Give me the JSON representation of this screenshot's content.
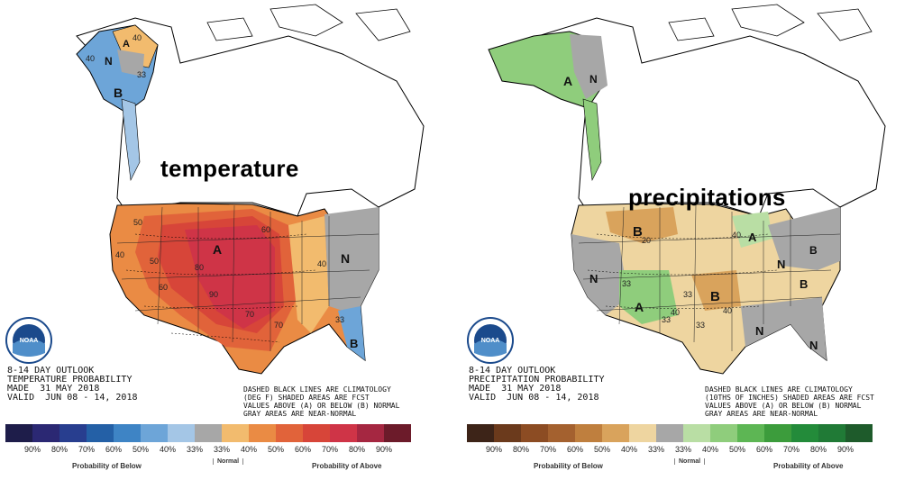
{
  "panels": {
    "temperature": {
      "big_label": "temperature",
      "info_lines": [
        "8-14 DAY OUTLOOK",
        "TEMPERATURE PROBABILITY",
        "MADE  31 MAY 2018",
        "VALID  JUN 08 - 14, 2018"
      ],
      "legend_lines": [
        "DASHED BLACK LINES ARE CLIMATOLOGY",
        "(DEG F) SHADED AREAS ARE FCST",
        "VALUES ABOVE (A) OR BELOW (B) NORMAL",
        "GRAY AREAS ARE NEAR-NORMAL"
      ],
      "map_labels": {
        "a_west": "A",
        "a_alaska": "A",
        "b_alaska": "B",
        "n_alaska": "N",
        "n_east": "N",
        "b_florida": "B"
      },
      "contour_values": [
        "40",
        "33",
        "40",
        "50",
        "40",
        "50",
        "60",
        "70",
        "80",
        "90",
        "60",
        "70",
        "40",
        "33"
      ],
      "scale_ticks": [
        "90%",
        "80%",
        "70%",
        "60%",
        "50%",
        "40%",
        "33%",
        "33%",
        "40%",
        "50%",
        "60%",
        "70%",
        "80%",
        "90%"
      ],
      "scale_colors": [
        "#1e1d4a",
        "#2b2873",
        "#283e8f",
        "#2460a6",
        "#3e84c5",
        "#6da5d8",
        "#a4c6e6",
        "#a7a7a7",
        "#f2bb6e",
        "#ea8b44",
        "#e1633a",
        "#d74539",
        "#cf3447",
        "#a52741",
        "#6c1b2a"
      ],
      "caption_below": "Probability of Below",
      "caption_normal": "Normal",
      "caption_above": "Probability of Above"
    },
    "precipitation": {
      "big_label": "precipitations",
      "info_lines": [
        "8-14 DAY OUTLOOK",
        "PRECIPITATION PROBABILITY",
        "MADE  31 MAY 2018",
        "VALID  JUN 08 - 14, 2018"
      ],
      "legend_lines": [
        "DASHED BLACK LINES ARE CLIMATOLOGY",
        "(10THS OF INCHES) SHADED AREAS ARE FCST",
        "VALUES ABOVE (A) OR BELOW (B) NORMAL",
        "GRAY AREAS ARE NEAR-NORMAL"
      ],
      "map_labels": {
        "a_alaska": "A",
        "n_alaska": "N",
        "b_north": "B",
        "a_greatlakes": "A",
        "n_west": "N",
        "a_southwest": "A",
        "b_central": "B",
        "n_east": "N",
        "b_east": "B",
        "n_south": "N",
        "n_southeast": "N",
        "b_northeast": "B"
      },
      "contour_values": [
        "20",
        "33",
        "33",
        "40",
        "33",
        "40",
        "33",
        "40"
      ],
      "scale_ticks": [
        "90%",
        "80%",
        "70%",
        "60%",
        "50%",
        "40%",
        "33%",
        "33%",
        "40%",
        "50%",
        "60%",
        "70%",
        "80%",
        "90%"
      ],
      "scale_colors": [
        "#3d2418",
        "#6b3a1c",
        "#8c4c23",
        "#a4612f",
        "#bf7f3e",
        "#d9a35c",
        "#eed5a0",
        "#a7a7a7",
        "#b9dea4",
        "#8fcd7c",
        "#5db654",
        "#3c9c3c",
        "#238b3a",
        "#207a36",
        "#1e5b2b"
      ],
      "caption_below": "Probability of Below",
      "caption_normal": "Normal",
      "caption_above": "Probability of Above"
    }
  },
  "logo_text": "NOAA"
}
